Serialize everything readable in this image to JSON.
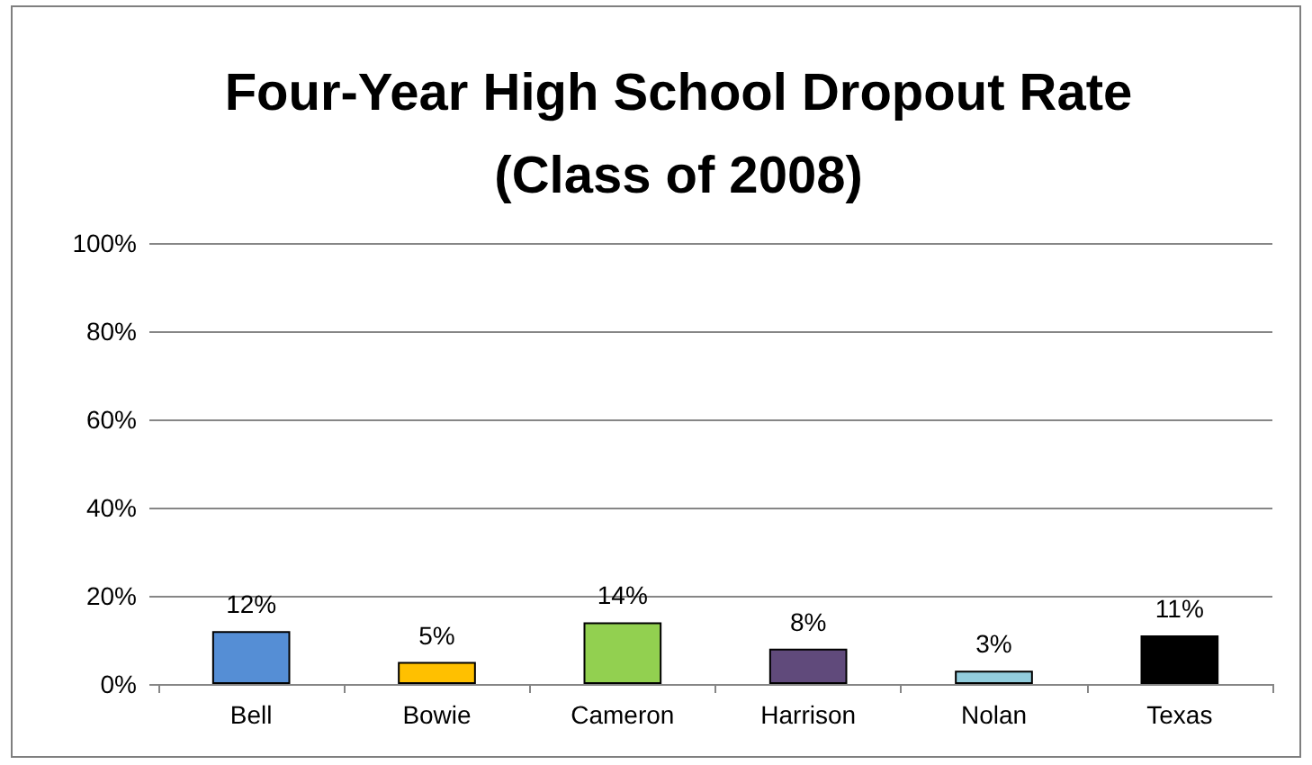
{
  "chart_data": {
    "type": "bar",
    "title": "Four-Year High School Dropout Rate\n(Class of 2008)",
    "categories": [
      "Bell",
      "Bowie",
      "Cameron",
      "Harrison",
      "Nolan",
      "Texas"
    ],
    "values": [
      12,
      5,
      14,
      8,
      3,
      11
    ],
    "colors": [
      "#558ed5",
      "#ffc000",
      "#92d050",
      "#604a7b",
      "#93cddd",
      "#000000"
    ],
    "value_labels": [
      "12%",
      "5%",
      "14%",
      "8%",
      "3%",
      "11%"
    ],
    "ylim": [
      0,
      100
    ],
    "yticks": [
      {
        "value": 0,
        "label": "0%"
      },
      {
        "value": 20,
        "label": "20%"
      },
      {
        "value": 40,
        "label": "40%"
      },
      {
        "value": 60,
        "label": "60%"
      },
      {
        "value": 80,
        "label": "80%"
      },
      {
        "value": 100,
        "label": "100%"
      }
    ],
    "grid": "y"
  }
}
